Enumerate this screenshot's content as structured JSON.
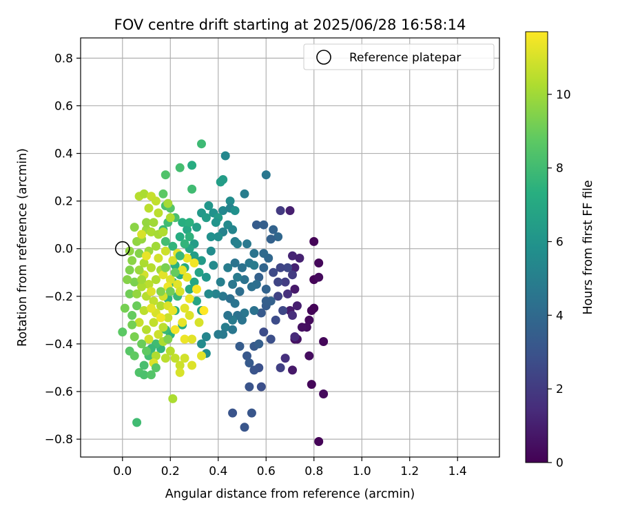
{
  "chart_data": {
    "type": "scatter",
    "title": "FOV centre drift starting at 2025/06/28 16:58:14",
    "xlabel": "Angular distance from reference (arcmin)",
    "ylabel": "Rotation from reference (arcmin)",
    "colorbar_label": "Hours from first FF file",
    "xlim": [
      -0.175,
      1.575
    ],
    "ylim": [
      -0.875,
      0.885
    ],
    "clim": [
      0,
      11.7
    ],
    "grid": true,
    "colormap": "viridis",
    "x_ticks": [
      "0.0",
      "0.2",
      "0.4",
      "0.6",
      "0.8",
      "1.0",
      "1.2",
      "1.4"
    ],
    "y_ticks": [
      "−0.8",
      "−0.6",
      "−0.4",
      "−0.2",
      "0.0",
      "0.2",
      "0.4",
      "0.6",
      "0.8"
    ],
    "colorbar_ticks": [
      "0",
      "2",
      "4",
      "6",
      "8",
      "10"
    ],
    "legend": {
      "label": "Reference platepar",
      "placement": "upper right"
    },
    "reference_point": {
      "x": 0.0,
      "y": 0.0
    },
    "points_columns": [
      "x_arcmin",
      "y_arcmin",
      "hours"
    ],
    "points": [
      [
        0.8,
        0.03,
        0.1
      ],
      [
        0.82,
        -0.06,
        0.2
      ],
      [
        0.8,
        -0.13,
        0.1
      ],
      [
        0.82,
        -0.12,
        0.3
      ],
      [
        0.79,
        -0.26,
        0.2
      ],
      [
        0.8,
        -0.25,
        0.1
      ],
      [
        0.78,
        -0.3,
        0.3
      ],
      [
        0.77,
        -0.33,
        0.4
      ],
      [
        0.75,
        -0.33,
        0.5
      ],
      [
        0.84,
        -0.39,
        0.2
      ],
      [
        0.72,
        -0.38,
        0.5
      ],
      [
        0.73,
        -0.38,
        0.6
      ],
      [
        0.78,
        -0.45,
        0.4
      ],
      [
        0.79,
        -0.57,
        0.2
      ],
      [
        0.84,
        -0.61,
        0.3
      ],
      [
        0.82,
        -0.81,
        0.1
      ],
      [
        0.71,
        -0.51,
        0.8
      ],
      [
        0.7,
        -0.26,
        0.9
      ],
      [
        0.72,
        -0.17,
        0.8
      ],
      [
        0.73,
        -0.24,
        1.0
      ],
      [
        0.71,
        -0.03,
        1.2
      ],
      [
        0.72,
        -0.08,
        1.1
      ],
      [
        0.7,
        0.16,
        1.0
      ],
      [
        0.74,
        -0.04,
        1.1
      ],
      [
        0.69,
        -0.19,
        1.6
      ],
      [
        0.71,
        -0.28,
        1.5
      ],
      [
        0.72,
        -0.37,
        1.4
      ],
      [
        0.68,
        -0.46,
        1.6
      ],
      [
        0.66,
        0.16,
        2.0
      ],
      [
        0.71,
        -0.11,
        2.0
      ],
      [
        0.68,
        -0.14,
        2.1
      ],
      [
        0.66,
        -0.5,
        2.2
      ],
      [
        0.69,
        -0.08,
        2.5
      ],
      [
        0.66,
        -0.08,
        2.4
      ],
      [
        0.65,
        -0.2,
        2.3
      ],
      [
        0.65,
        -0.14,
        2.4
      ],
      [
        0.63,
        -0.1,
        2.6
      ],
      [
        0.67,
        -0.26,
        2.5
      ],
      [
        0.64,
        -0.3,
        2.7
      ],
      [
        0.62,
        -0.38,
        2.8
      ],
      [
        0.59,
        -0.35,
        2.7
      ],
      [
        0.57,
        -0.5,
        2.9
      ],
      [
        0.58,
        -0.58,
        2.8
      ],
      [
        0.55,
        -0.51,
        3.0
      ],
      [
        0.53,
        -0.58,
        3.0
      ],
      [
        0.54,
        -0.69,
        3.1
      ],
      [
        0.46,
        -0.69,
        3.0
      ],
      [
        0.51,
        -0.75,
        3.1
      ],
      [
        0.52,
        -0.45,
        3.2
      ],
      [
        0.53,
        -0.48,
        3.3
      ],
      [
        0.49,
        -0.41,
        3.4
      ],
      [
        0.55,
        -0.41,
        3.3
      ],
      [
        0.57,
        -0.4,
        3.5
      ],
      [
        0.6,
        -0.24,
        3.4
      ],
      [
        0.58,
        -0.27,
        3.3
      ],
      [
        0.62,
        -0.22,
        3.6
      ],
      [
        0.6,
        -0.22,
        3.5
      ],
      [
        0.6,
        -0.17,
        3.7
      ],
      [
        0.57,
        -0.12,
        3.6
      ],
      [
        0.59,
        -0.08,
        3.8
      ],
      [
        0.61,
        -0.04,
        3.9
      ],
      [
        0.59,
        -0.02,
        4.0
      ],
      [
        0.63,
        0.08,
        3.7
      ],
      [
        0.65,
        0.05,
        3.9
      ],
      [
        0.62,
        0.04,
        3.6
      ],
      [
        0.56,
        0.1,
        3.4
      ],
      [
        0.59,
        0.1,
        3.5
      ],
      [
        0.6,
        0.31,
        4.6
      ],
      [
        0.56,
        -0.15,
        4.2
      ],
      [
        0.54,
        -0.16,
        4.3
      ],
      [
        0.55,
        -0.26,
        4.4
      ],
      [
        0.51,
        -0.27,
        4.6
      ],
      [
        0.5,
        -0.3,
        4.5
      ],
      [
        0.48,
        -0.28,
        4.4
      ],
      [
        0.46,
        -0.3,
        4.8
      ],
      [
        0.44,
        -0.28,
        4.5
      ],
      [
        0.43,
        -0.33,
        4.9
      ],
      [
        0.46,
        -0.34,
        4.6
      ],
      [
        0.42,
        -0.36,
        4.7
      ],
      [
        0.4,
        -0.36,
        4.8
      ],
      [
        0.42,
        -0.2,
        4.6
      ],
      [
        0.45,
        -0.21,
        4.3
      ],
      [
        0.47,
        -0.23,
        4.5
      ],
      [
        0.49,
        -0.18,
        4.2
      ],
      [
        0.51,
        -0.13,
        4.4
      ],
      [
        0.46,
        -0.15,
        4.6
      ],
      [
        0.48,
        -0.12,
        4.8
      ],
      [
        0.47,
        -0.06,
        4.5
      ],
      [
        0.5,
        -0.08,
        4.4
      ],
      [
        0.53,
        -0.06,
        4.6
      ],
      [
        0.55,
        -0.07,
        4.8
      ],
      [
        0.55,
        -0.02,
        4.5
      ],
      [
        0.52,
        0.02,
        4.7
      ],
      [
        0.51,
        0.23,
        4.9
      ],
      [
        0.43,
        0.39,
        5.4
      ],
      [
        0.45,
        0.2,
        5.6
      ],
      [
        0.42,
        0.16,
        5.4
      ],
      [
        0.45,
        0.17,
        5.2
      ],
      [
        0.47,
        0.16,
        5.8
      ],
      [
        0.44,
        0.1,
        5.5
      ],
      [
        0.42,
        0.07,
        5.2
      ],
      [
        0.46,
        0.08,
        5.3
      ],
      [
        0.47,
        0.03,
        5.0
      ],
      [
        0.48,
        0.02,
        5.1
      ],
      [
        0.44,
        -0.08,
        4.9
      ],
      [
        0.41,
        -0.14,
        5.0
      ],
      [
        0.39,
        -0.19,
        5.2
      ],
      [
        0.38,
        -0.07,
        5.5
      ],
      [
        0.35,
        -0.37,
        5.3
      ],
      [
        0.33,
        -0.4,
        5.6
      ],
      [
        0.35,
        -0.44,
        5.7
      ],
      [
        0.36,
        -0.19,
        5.5
      ],
      [
        0.37,
        -0.01,
        5.6
      ],
      [
        0.37,
        0.05,
        5.8
      ],
      [
        0.4,
        0.05,
        5.7
      ],
      [
        0.38,
        0.15,
        5.9
      ],
      [
        0.36,
        0.18,
        6.1
      ],
      [
        0.4,
        0.13,
        6.3
      ],
      [
        0.41,
        0.28,
        6.5
      ],
      [
        0.42,
        0.29,
        6.4
      ],
      [
        0.39,
        0.11,
        6.0
      ],
      [
        0.33,
        0.15,
        6.2
      ],
      [
        0.35,
        0.13,
        6.4
      ],
      [
        0.31,
        0.09,
        6.6
      ],
      [
        0.3,
        0.02,
        6.4
      ],
      [
        0.28,
        0.0,
        6.8
      ],
      [
        0.3,
        -0.03,
        6.5
      ],
      [
        0.33,
        -0.05,
        6.3
      ],
      [
        0.35,
        -0.12,
        6.1
      ],
      [
        0.32,
        -0.1,
        6.7
      ],
      [
        0.3,
        -0.14,
        6.9
      ],
      [
        0.33,
        -0.26,
        6.5
      ],
      [
        0.31,
        -0.22,
        6.8
      ],
      [
        0.28,
        -0.17,
        7.0
      ],
      [
        0.26,
        -0.08,
        7.1
      ],
      [
        0.24,
        0.05,
        7.2
      ],
      [
        0.27,
        0.08,
        7.0
      ],
      [
        0.25,
        0.11,
        7.3
      ],
      [
        0.28,
        0.11,
        7.4
      ],
      [
        0.29,
        0.35,
        7.2
      ],
      [
        0.33,
        0.44,
        7.9
      ],
      [
        0.24,
        0.34,
        8.1
      ],
      [
        0.29,
        0.25,
        8.0
      ],
      [
        0.18,
        0.31,
        8.4
      ],
      [
        0.17,
        0.23,
        8.7
      ],
      [
        0.18,
        0.18,
        8.3
      ],
      [
        0.2,
        0.17,
        8.5
      ],
      [
        0.22,
        0.13,
        8.2
      ],
      [
        0.19,
        0.11,
        8.0
      ],
      [
        0.17,
        0.08,
        7.8
      ],
      [
        0.18,
        0.03,
        8.1
      ],
      [
        0.21,
        0.01,
        7.6
      ],
      [
        0.22,
        -0.07,
        7.4
      ],
      [
        0.24,
        -0.11,
        7.2
      ],
      [
        0.21,
        -0.14,
        7.6
      ],
      [
        0.23,
        -0.2,
        7.8
      ],
      [
        0.19,
        -0.21,
        7.5
      ],
      [
        0.22,
        -0.26,
        7.3
      ],
      [
        0.25,
        -0.32,
        7.1
      ],
      [
        0.2,
        -0.36,
        7.4
      ],
      [
        0.18,
        -0.34,
        7.8
      ],
      [
        0.16,
        -0.42,
        7.6
      ],
      [
        0.14,
        -0.4,
        8.0
      ],
      [
        0.12,
        -0.42,
        7.8
      ],
      [
        0.11,
        -0.45,
        8.1
      ],
      [
        0.09,
        -0.49,
        8.2
      ],
      [
        0.07,
        -0.52,
        8.4
      ],
      [
        0.09,
        -0.53,
        8.3
      ],
      [
        0.12,
        -0.53,
        8.5
      ],
      [
        0.06,
        -0.73,
        8.0
      ],
      [
        0.03,
        -0.43,
        8.6
      ],
      [
        0.05,
        -0.45,
        8.8
      ],
      [
        0.0,
        -0.35,
        8.7
      ],
      [
        0.04,
        -0.28,
        8.9
      ],
      [
        0.06,
        -0.24,
        9.0
      ],
      [
        0.01,
        -0.25,
        9.2
      ],
      [
        0.03,
        -0.19,
        9.1
      ],
      [
        0.05,
        -0.14,
        9.3
      ],
      [
        0.03,
        -0.09,
        9.4
      ],
      [
        0.04,
        -0.05,
        9.6
      ],
      [
        0.07,
        -0.02,
        9.5
      ],
      [
        0.06,
        0.03,
        9.7
      ],
      [
        0.08,
        0.04,
        9.8
      ],
      [
        0.1,
        0.08,
        9.9
      ],
      [
        0.05,
        0.09,
        9.6
      ],
      [
        0.1,
        0.11,
        9.8
      ],
      [
        0.13,
        0.11,
        10.0
      ],
      [
        0.12,
        0.07,
        10.2
      ],
      [
        0.15,
        0.06,
        10.1
      ],
      [
        0.17,
        0.07,
        10.3
      ],
      [
        0.14,
        0.01,
        10.0
      ],
      [
        0.11,
        -0.01,
        9.9
      ],
      [
        0.09,
        -0.06,
        10.2
      ],
      [
        0.12,
        -0.08,
        10.4
      ],
      [
        0.16,
        -0.09,
        10.1
      ],
      [
        0.14,
        -0.13,
        10.3
      ],
      [
        0.11,
        -0.15,
        10.5
      ],
      [
        0.08,
        -0.16,
        10.2
      ],
      [
        0.1,
        -0.2,
        10.4
      ],
      [
        0.13,
        -0.22,
        10.6
      ],
      [
        0.16,
        -0.24,
        10.3
      ],
      [
        0.09,
        -0.26,
        10.5
      ],
      [
        0.07,
        -0.31,
        10.7
      ],
      [
        0.1,
        -0.34,
        10.4
      ],
      [
        0.13,
        -0.31,
        10.6
      ],
      [
        0.15,
        -0.36,
        10.8
      ],
      [
        0.17,
        -0.33,
        10.5
      ],
      [
        0.19,
        -0.29,
        10.7
      ],
      [
        0.17,
        -0.39,
        10.2
      ],
      [
        0.14,
        -0.45,
        10.3
      ],
      [
        0.18,
        -0.46,
        10.5
      ],
      [
        0.2,
        -0.43,
        10.4
      ],
      [
        0.22,
        -0.46,
        10.6
      ],
      [
        0.24,
        -0.49,
        10.8
      ],
      [
        0.26,
        -0.46,
        10.9
      ],
      [
        0.24,
        -0.52,
        11.0
      ],
      [
        0.29,
        -0.49,
        11.1
      ],
      [
        0.33,
        -0.45,
        11.2
      ],
      [
        0.21,
        -0.63,
        10.2
      ],
      [
        0.07,
        0.22,
        10.4
      ],
      [
        0.09,
        0.23,
        10.2
      ],
      [
        0.11,
        0.17,
        10.5
      ],
      [
        0.12,
        0.22,
        10.7
      ],
      [
        0.14,
        0.2,
        10.6
      ],
      [
        0.19,
        0.19,
        10.1
      ],
      [
        0.2,
        0.13,
        10.3
      ],
      [
        0.15,
        0.15,
        10.5
      ],
      [
        0.18,
        -0.01,
        10.8
      ],
      [
        0.21,
        -0.05,
        11.0
      ],
      [
        0.2,
        -0.13,
        11.1
      ],
      [
        0.23,
        -0.15,
        11.2
      ],
      [
        0.25,
        -0.09,
        11.3
      ],
      [
        0.23,
        -0.02,
        11.2
      ],
      [
        0.27,
        -0.04,
        11.4
      ],
      [
        0.3,
        -0.06,
        11.5
      ],
      [
        0.27,
        -0.12,
        11.3
      ],
      [
        0.31,
        -0.17,
        11.6
      ],
      [
        0.28,
        -0.21,
        11.4
      ],
      [
        0.26,
        -0.25,
        11.2
      ],
      [
        0.28,
        -0.28,
        11.1
      ],
      [
        0.25,
        -0.31,
        11.3
      ],
      [
        0.22,
        -0.34,
        11.5
      ],
      [
        0.26,
        -0.38,
        11.4
      ],
      [
        0.29,
        -0.38,
        11.2
      ],
      [
        0.34,
        -0.26,
        11.7
      ],
      [
        0.32,
        -0.31,
        11.0
      ],
      [
        0.24,
        -0.18,
        11.0
      ],
      [
        0.17,
        -0.2,
        10.9
      ],
      [
        0.14,
        -0.27,
        11.0
      ],
      [
        0.19,
        -0.24,
        11.1
      ],
      [
        0.21,
        -0.26,
        11.3
      ],
      [
        0.12,
        -0.18,
        11.1
      ],
      [
        0.09,
        -0.11,
        10.9
      ],
      [
        0.1,
        -0.03,
        11.3
      ],
      [
        0.17,
        -0.11,
        11.2
      ],
      [
        0.19,
        -0.16,
        11.4
      ],
      [
        0.15,
        -0.04,
        10.9
      ],
      [
        0.08,
        0.06,
        11.0
      ],
      [
        0.11,
        -0.38,
        10.9
      ],
      [
        0.13,
        -0.48,
        11.1
      ],
      [
        0.16,
        -0.29,
        11.5
      ],
      [
        0.12,
        -0.25,
        11.2
      ],
      [
        0.06,
        -0.19,
        9.8
      ],
      [
        0.02,
        -0.13,
        9.5
      ],
      [
        0.05,
        -0.37,
        9.3
      ],
      [
        0.08,
        -0.4,
        9.0
      ],
      [
        0.1,
        -0.43,
        8.8
      ],
      [
        0.14,
        -0.5,
        8.6
      ],
      [
        0.04,
        -0.32,
        9.2
      ],
      [
        0.07,
        -0.09,
        9.9
      ],
      [
        0.08,
        -0.13,
        10.0
      ],
      [
        0.03,
        -0.01,
        9.7
      ],
      [
        0.26,
        0.02,
        7.6
      ],
      [
        0.24,
        -0.03,
        7.8
      ],
      [
        0.28,
        0.05,
        7.5
      ],
      [
        0.22,
        -0.1,
        8.9
      ],
      [
        0.2,
        -0.18,
        9.1
      ],
      [
        0.18,
        -0.08,
        9.3
      ],
      [
        0.16,
        -0.18,
        9.5
      ],
      [
        0.19,
        -0.38,
        9.4
      ]
    ]
  }
}
